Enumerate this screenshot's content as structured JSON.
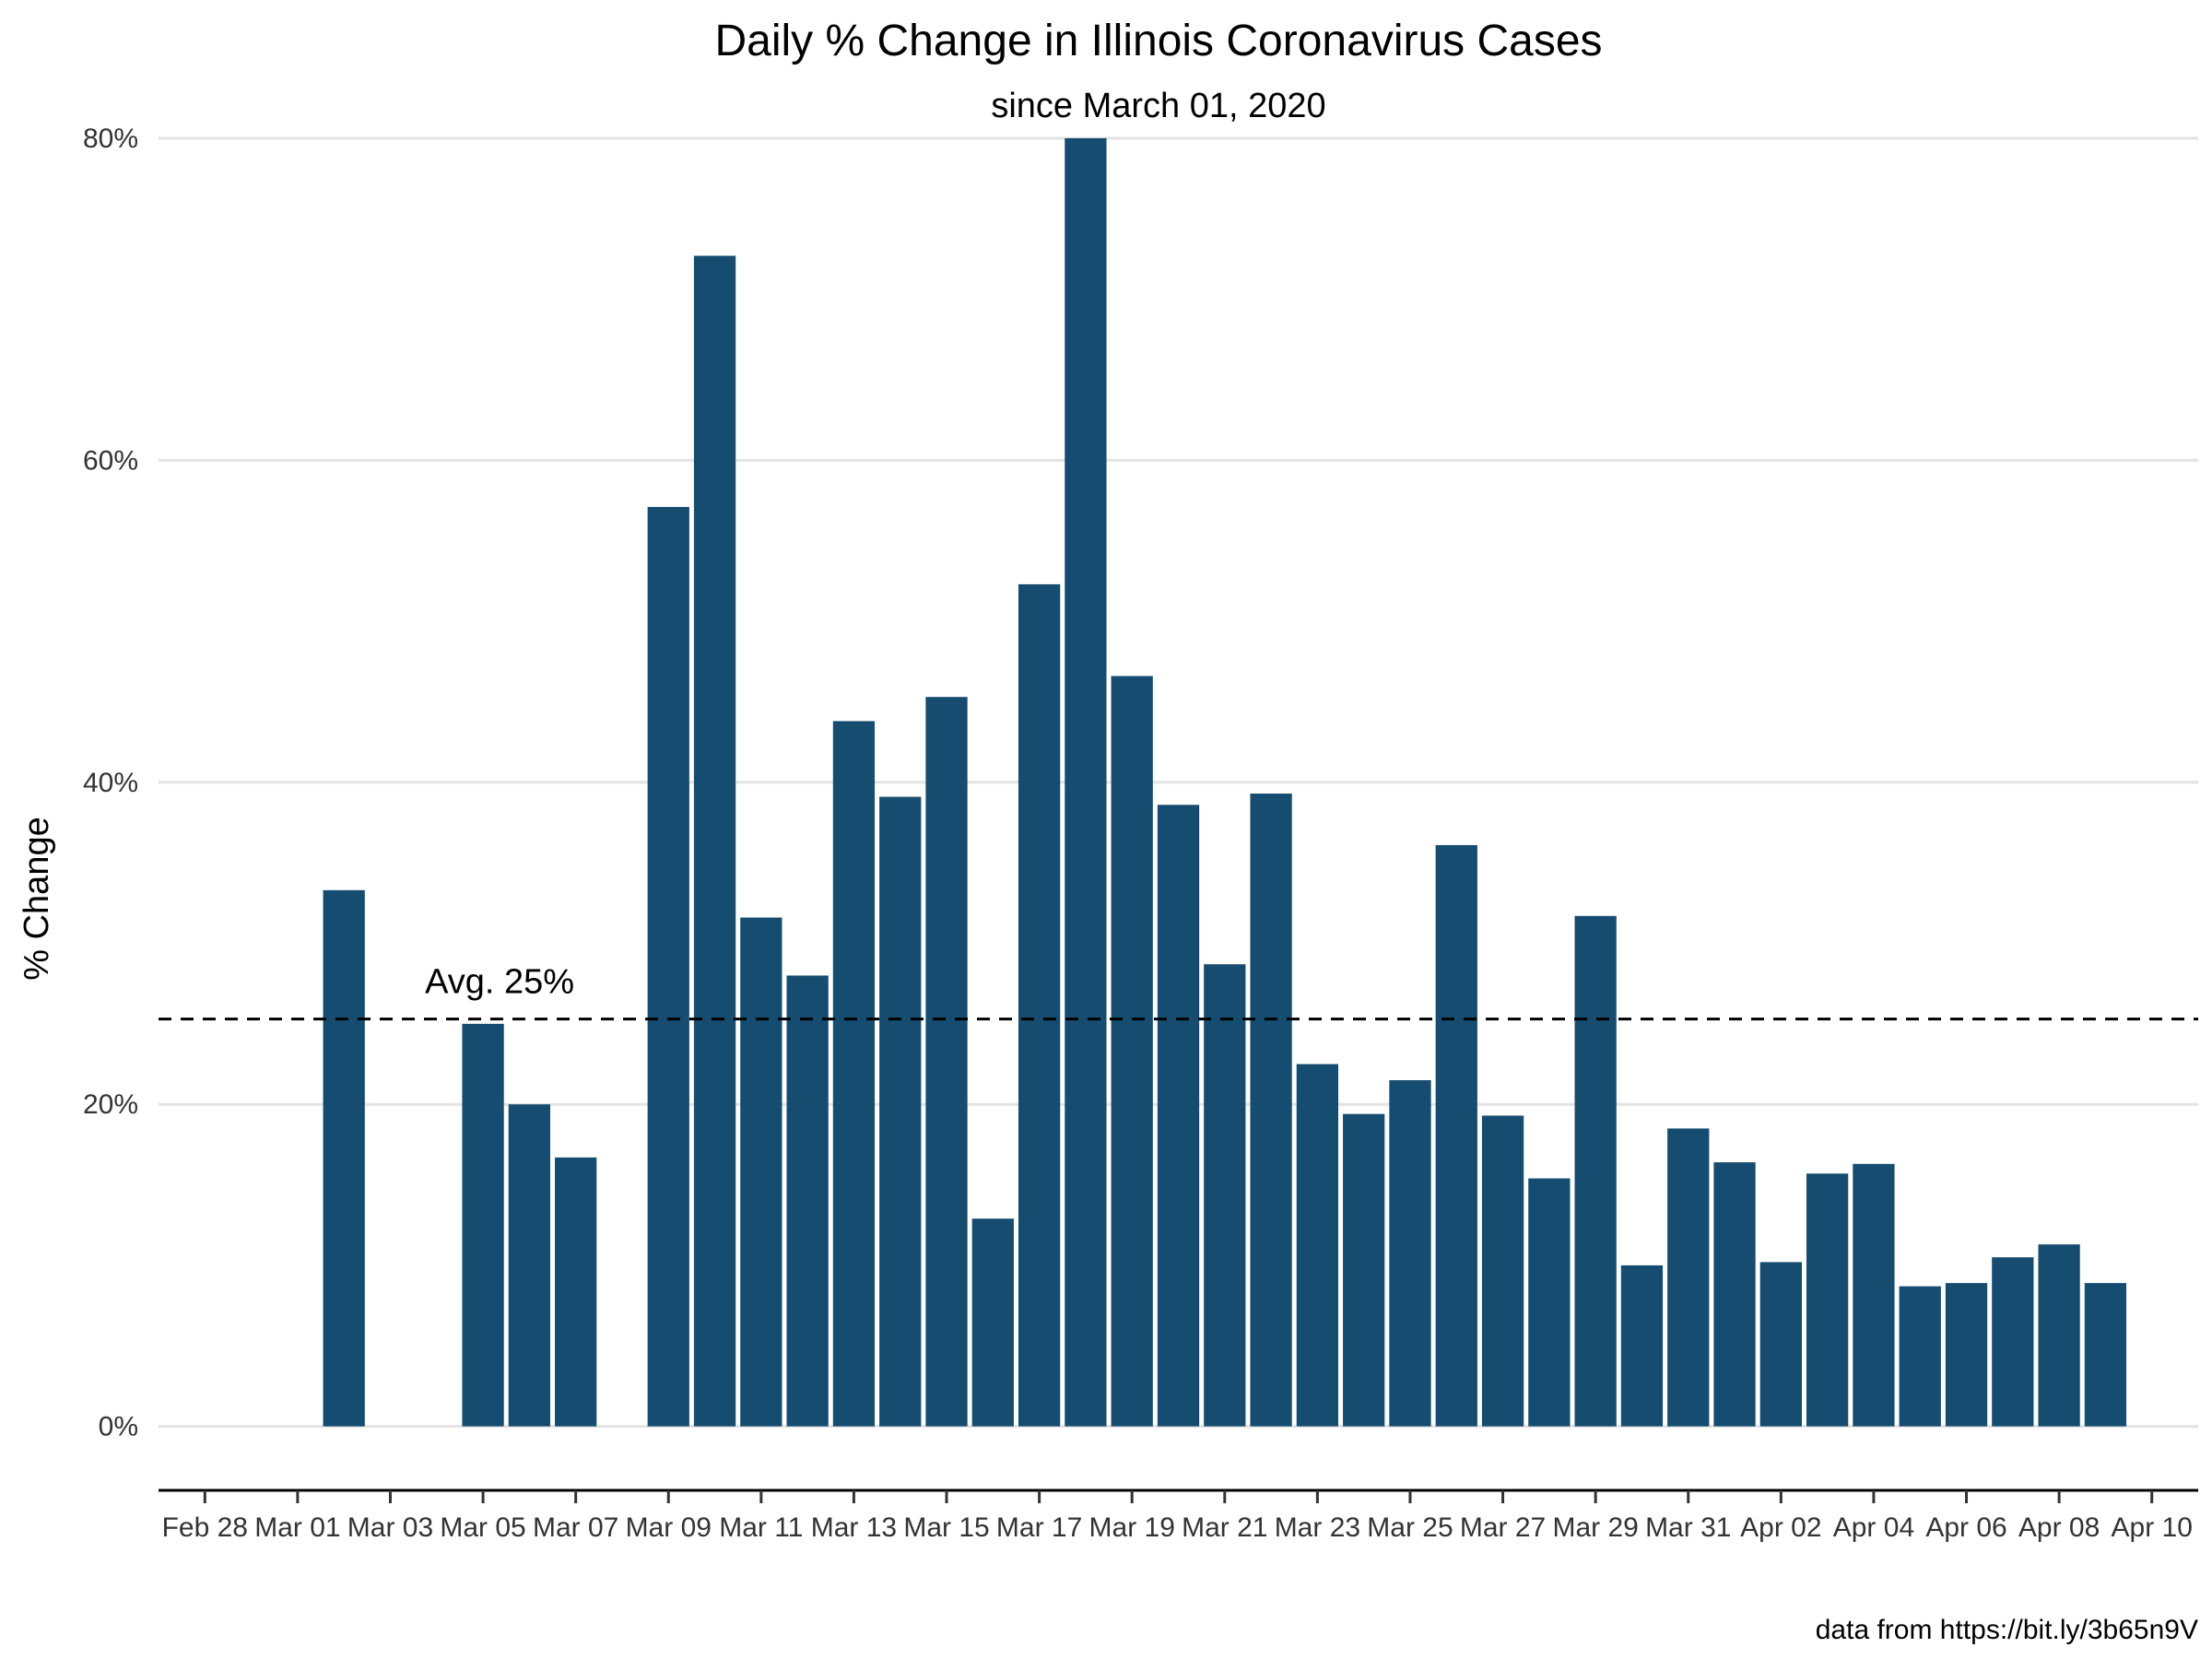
{
  "chart_data": {
    "type": "bar",
    "title": "Daily % Change in Illinois Coronavirus Cases",
    "subtitle": "since March 01, 2020",
    "ylabel": "% Change",
    "xlabel": "",
    "caption": "data from https://bit.ly/3b65n9V",
    "ylim": [
      -3,
      80
    ],
    "y_ticks": [
      0,
      20,
      40,
      60,
      80
    ],
    "y_tick_labels": [
      "0%",
      "20%",
      "40%",
      "60%",
      "80%"
    ],
    "x_ticks": [
      "2020-02-28",
      "2020-03-01",
      "2020-03-03",
      "2020-03-05",
      "2020-03-07",
      "2020-03-09",
      "2020-03-11",
      "2020-03-13",
      "2020-03-15",
      "2020-03-17",
      "2020-03-19",
      "2020-03-21",
      "2020-03-23",
      "2020-03-25",
      "2020-03-27",
      "2020-03-29",
      "2020-03-31",
      "2020-04-02",
      "2020-04-04",
      "2020-04-06",
      "2020-04-08",
      "2020-04-10"
    ],
    "x_tick_labels": [
      "Feb 28",
      "Mar 01",
      "Mar 03",
      "Mar 05",
      "Mar 07",
      "Mar 09",
      "Mar 11",
      "Mar 13",
      "Mar 15",
      "Mar 17",
      "Mar 19",
      "Mar 21",
      "Mar 23",
      "Mar 25",
      "Mar 27",
      "Mar 29",
      "Mar 31",
      "Apr 02",
      "Apr 04",
      "Apr 06",
      "Apr 08",
      "Apr 10"
    ],
    "x_range": [
      "2020-02-27",
      "2020-04-11"
    ],
    "categories": [
      "2020-03-02",
      "2020-03-05",
      "2020-03-06",
      "2020-03-07",
      "2020-03-09",
      "2020-03-10",
      "2020-03-11",
      "2020-03-12",
      "2020-03-13",
      "2020-03-14",
      "2020-03-15",
      "2020-03-16",
      "2020-03-17",
      "2020-03-18",
      "2020-03-19",
      "2020-03-20",
      "2020-03-21",
      "2020-03-22",
      "2020-03-23",
      "2020-03-24",
      "2020-03-25",
      "2020-03-26",
      "2020-03-27",
      "2020-03-28",
      "2020-03-29",
      "2020-03-30",
      "2020-03-31",
      "2020-04-01",
      "2020-04-02",
      "2020-04-03",
      "2020-04-04",
      "2020-04-05",
      "2020-04-06",
      "2020-04-07",
      "2020-04-08",
      "2020-04-09"
    ],
    "values": [
      33.3,
      25.0,
      20.0,
      16.7,
      57.1,
      72.7,
      31.6,
      28.0,
      43.8,
      39.1,
      45.3,
      12.9,
      52.3,
      80.0,
      46.6,
      38.6,
      28.7,
      39.3,
      22.5,
      19.4,
      21.5,
      36.1,
      19.3,
      15.4,
      31.7,
      10.0,
      18.5,
      16.4,
      10.2,
      15.7,
      16.3,
      8.7,
      8.9,
      10.5,
      11.3,
      8.9
    ],
    "reference_line": {
      "value": 25.3,
      "label": "Avg. 25%",
      "style": "dashed"
    },
    "bar_color": "#154c6f",
    "grid": true
  }
}
